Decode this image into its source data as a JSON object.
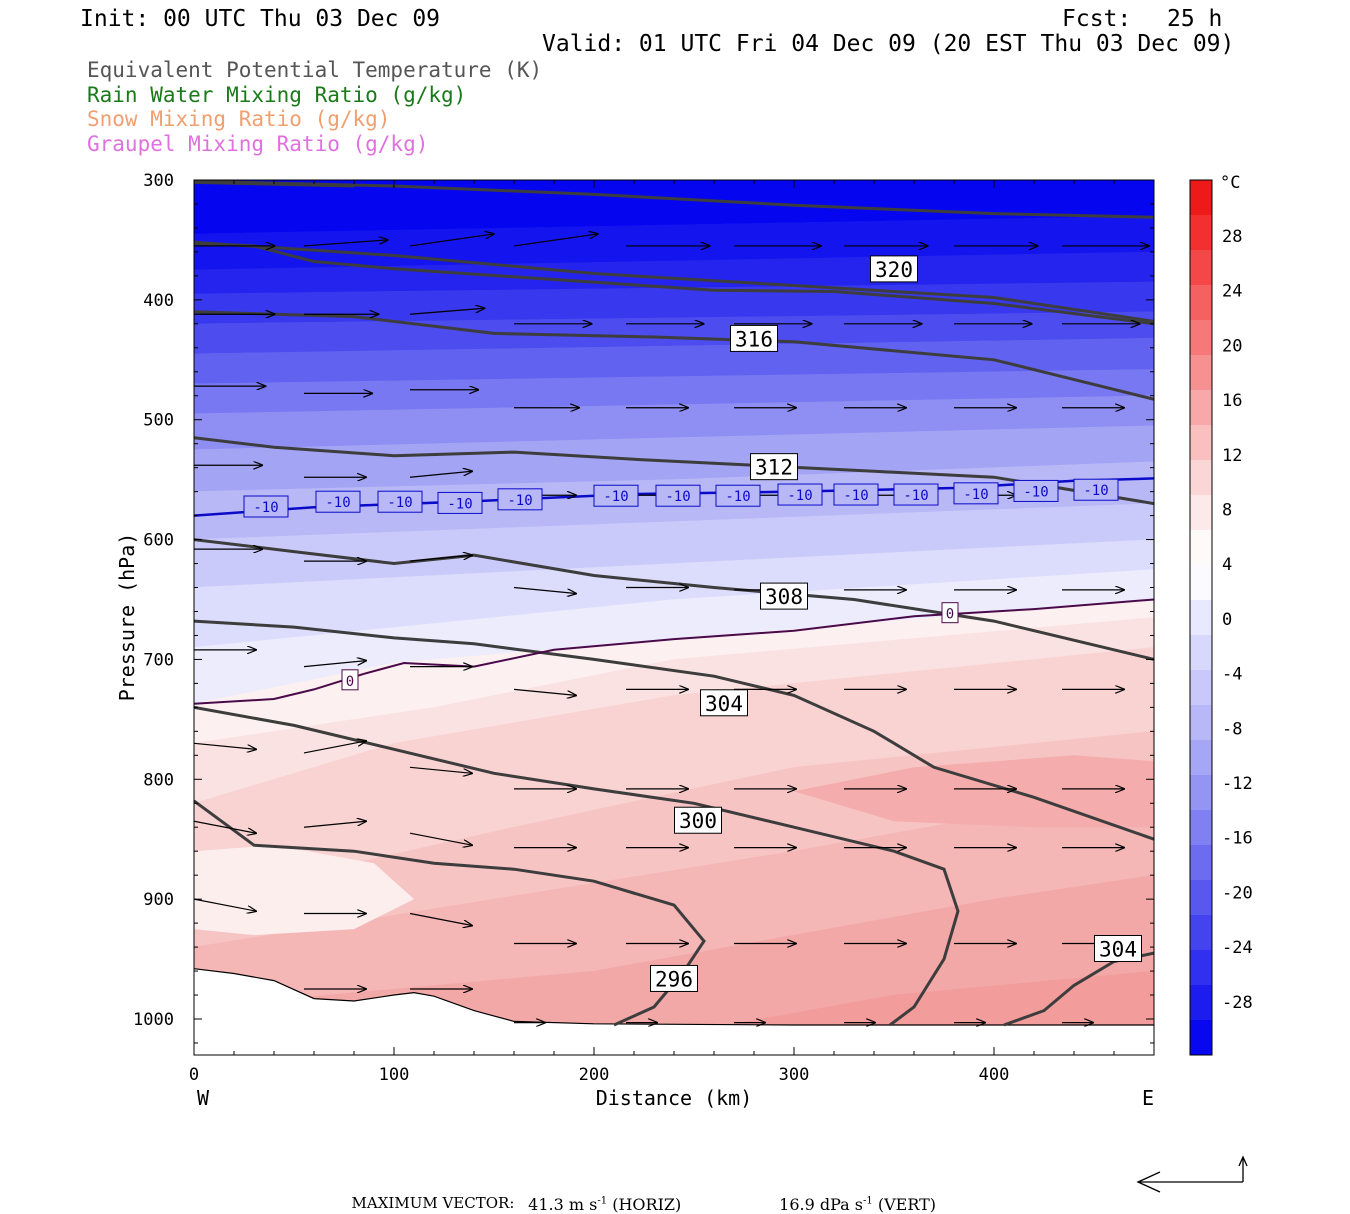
{
  "header": {
    "init": "Init: 00 UTC Thu 03 Dec 09",
    "fcst_label": "Fcst:",
    "fcst_value": "25 h",
    "valid": "Valid: 01 UTC Fri 04 Dec 09 (20 EST Thu 03 Dec 09)"
  },
  "legend": [
    {
      "text": "Equivalent Potential Temperature (K)",
      "color": "#555555"
    },
    {
      "text": "Rain Water Mixing Ratio (g/kg)",
      "color": "#1a7a1a"
    },
    {
      "text": "Snow Mixing Ratio (g/kg)",
      "color": "#f0a070"
    },
    {
      "text": "Graupel Mixing Ratio (g/kg)",
      "color": "#e070e0"
    }
  ],
  "footer": {
    "max_vector_label": "MAXIMUM VECTOR:",
    "horiz_value": "41.3 m s",
    "horiz_exp": "-1",
    "horiz_suffix": "(HORIZ)",
    "vert_value": "16.9 dPa s",
    "vert_exp": "-1",
    "vert_suffix": "(VERT)"
  },
  "chart_data": {
    "type": "heatmap",
    "description_fields": "cross-section of temperature (shaded, degC) with equivalent potential temperature contours (K), 0/-10 degC isotherms and wind vectors",
    "xlabel": "Distance (km)",
    "ylabel": "Pressure (hPa)",
    "xlim": [
      0,
      480
    ],
    "ylim": [
      1030,
      300
    ],
    "x_ticks": [
      0,
      100,
      200,
      300,
      400
    ],
    "y_ticks": [
      300,
      400,
      500,
      600,
      700,
      800,
      900,
      1000
    ],
    "x_end_labels": {
      "left": "W",
      "right": "E"
    },
    "colorbar": {
      "unit": "°C",
      "tick_labels": [
        "28",
        "24",
        "20",
        "16",
        "12",
        "8",
        "4",
        "0",
        "-4",
        "-8",
        "-12",
        "-16",
        "-20",
        "-24",
        "-28"
      ],
      "colors": [
        "#ee1a1a",
        "#f23030",
        "#f44848",
        "#f56060",
        "#f67878",
        "#f79090",
        "#f8a8a8",
        "#fac0c0",
        "#fbd6d6",
        "#fde9e9",
        "#fefafa",
        "#fafaff",
        "#e8e8ff",
        "#d8d8fc",
        "#c8c8fa",
        "#b8b8f8",
        "#a6a6f6",
        "#9494f4",
        "#8080f2",
        "#6c6cf0",
        "#5858ef",
        "#4444ee",
        "#3030ee",
        "#1c1cef",
        "#0808f0"
      ]
    },
    "theta_e_contours": [
      {
        "label": "320",
        "points": [
          [
            0,
            301
          ],
          [
            100,
            305
          ],
          [
            200,
            312
          ],
          [
            300,
            321
          ],
          [
            400,
            328
          ],
          [
            480,
            331
          ]
        ],
        "label_at": [
          350,
          375
        ]
      },
      {
        "label": "",
        "points": [
          [
            0,
            302
          ],
          [
            80,
            305
          ]
        ]
      },
      {
        "label": "",
        "points": [
          [
            0,
            352
          ],
          [
            100,
            363
          ],
          [
            200,
            378
          ],
          [
            300,
            388
          ],
          [
            400,
            398
          ],
          [
            480,
            418
          ]
        ]
      },
      {
        "label": "",
        "points": [
          [
            0,
            353
          ],
          [
            30,
            355
          ],
          [
            60,
            368
          ],
          [
            100,
            374
          ],
          [
            180,
            383
          ],
          [
            260,
            392
          ],
          [
            320,
            393
          ],
          [
            400,
            403
          ],
          [
            480,
            420
          ]
        ]
      },
      {
        "label": "316",
        "points": [
          [
            0,
            410
          ],
          [
            80,
            414
          ],
          [
            150,
            428
          ],
          [
            230,
            431
          ],
          [
            300,
            435
          ],
          [
            400,
            450
          ],
          [
            480,
            483
          ]
        ],
        "label_at": [
          280,
          433
        ]
      },
      {
        "label": "312",
        "points": [
          [
            0,
            515
          ],
          [
            40,
            523
          ],
          [
            100,
            530
          ],
          [
            160,
            527
          ],
          [
            220,
            533
          ],
          [
            280,
            538
          ],
          [
            340,
            543
          ],
          [
            400,
            548
          ],
          [
            480,
            570
          ]
        ],
        "label_at": [
          290,
          540
        ]
      },
      {
        "label": "308",
        "points": [
          [
            0,
            600
          ],
          [
            50,
            610
          ],
          [
            100,
            620
          ],
          [
            140,
            613
          ],
          [
            200,
            630
          ],
          [
            260,
            640
          ],
          [
            330,
            650
          ],
          [
            400,
            668
          ],
          [
            480,
            700
          ]
        ],
        "label_at": [
          295,
          648
        ]
      },
      {
        "label": "304",
        "points": [
          [
            0,
            668
          ],
          [
            50,
            673
          ],
          [
            100,
            682
          ],
          [
            140,
            687
          ],
          [
            200,
            700
          ],
          [
            260,
            714
          ],
          [
            300,
            730
          ],
          [
            340,
            760
          ],
          [
            370,
            790
          ],
          [
            420,
            815
          ],
          [
            480,
            850
          ]
        ],
        "label_at": [
          265,
          737
        ]
      },
      {
        "label": "300",
        "points": [
          [
            0,
            740
          ],
          [
            50,
            755
          ],
          [
            100,
            775
          ],
          [
            150,
            795
          ],
          [
            200,
            808
          ],
          [
            250,
            820
          ],
          [
            300,
            840
          ],
          [
            350,
            860
          ],
          [
            375,
            875
          ],
          [
            382,
            910
          ],
          [
            375,
            950
          ],
          [
            360,
            990
          ],
          [
            348,
            1005
          ]
        ],
        "label_at": [
          252,
          835
        ]
      },
      {
        "label": "296",
        "points": [
          [
            0,
            818
          ],
          [
            30,
            855
          ],
          [
            80,
            860
          ],
          [
            120,
            870
          ],
          [
            160,
            875
          ],
          [
            200,
            885
          ],
          [
            240,
            905
          ],
          [
            255,
            935
          ],
          [
            245,
            960
          ],
          [
            230,
            990
          ],
          [
            210,
            1005
          ]
        ],
        "label_at": [
          240,
          967
        ]
      },
      {
        "label": "304",
        "points": [
          [
            405,
            1005
          ],
          [
            425,
            993
          ],
          [
            440,
            972
          ],
          [
            460,
            952
          ],
          [
            480,
            945
          ]
        ],
        "label_at": [
          462,
          942
        ]
      }
    ],
    "isotherm_0": {
      "label": "0",
      "points": [
        [
          0,
          737
        ],
        [
          40,
          733
        ],
        [
          60,
          725
        ],
        [
          85,
          712
        ],
        [
          105,
          703
        ],
        [
          140,
          706
        ],
        [
          180,
          692
        ],
        [
          240,
          683
        ],
        [
          300,
          676
        ],
        [
          360,
          664
        ],
        [
          420,
          658
        ],
        [
          480,
          650
        ]
      ],
      "label_at": [
        [
          78,
          717
        ],
        [
          378,
          661
        ]
      ]
    },
    "isotherm_minus10": {
      "label": "-10",
      "points": [
        [
          0,
          580
        ],
        [
          60,
          573
        ],
        [
          140,
          568
        ],
        [
          220,
          562
        ],
        [
          300,
          560
        ],
        [
          380,
          557
        ],
        [
          440,
          551
        ],
        [
          480,
          549
        ]
      ],
      "label_at": [
        [
          36,
          572
        ],
        [
          72,
          568
        ],
        [
          103,
          568
        ],
        [
          133,
          569
        ],
        [
          163,
          566
        ],
        [
          211,
          563
        ],
        [
          242,
          563
        ],
        [
          272,
          563
        ],
        [
          303,
          562
        ],
        [
          331,
          562
        ],
        [
          361,
          562
        ],
        [
          391,
          561
        ],
        [
          421,
          559
        ],
        [
          451,
          558
        ]
      ]
    },
    "wind_vectors": [
      {
        "x": 0,
        "p": 355,
        "u": 26,
        "w": 0
      },
      {
        "x": 55,
        "p": 355,
        "u": 27,
        "w": 1
      },
      {
        "x": 108,
        "p": 355,
        "u": 27,
        "w": 2
      },
      {
        "x": 160,
        "p": 355,
        "u": 27,
        "w": 2
      },
      {
        "x": 216,
        "p": 355,
        "u": 27,
        "w": 0
      },
      {
        "x": 270,
        "p": 355,
        "u": 28,
        "w": 0
      },
      {
        "x": 325,
        "p": 355,
        "u": 27,
        "w": 0
      },
      {
        "x": 380,
        "p": 355,
        "u": 27,
        "w": 0
      },
      {
        "x": 434,
        "p": 355,
        "u": 28,
        "w": 0
      },
      {
        "x": 0,
        "p": 412,
        "u": 26,
        "w": 0
      },
      {
        "x": 55,
        "p": 412,
        "u": 24,
        "w": 0
      },
      {
        "x": 108,
        "p": 412,
        "u": 24,
        "w": 1
      },
      {
        "x": 160,
        "p": 420,
        "u": 25,
        "w": 0
      },
      {
        "x": 216,
        "p": 420,
        "u": 25,
        "w": 0
      },
      {
        "x": 270,
        "p": 420,
        "u": 25,
        "w": 0
      },
      {
        "x": 325,
        "p": 420,
        "u": 25,
        "w": 0
      },
      {
        "x": 380,
        "p": 420,
        "u": 25,
        "w": 0
      },
      {
        "x": 434,
        "p": 420,
        "u": 25,
        "w": 0
      },
      {
        "x": 0,
        "p": 472,
        "u": 23,
        "w": 0
      },
      {
        "x": 55,
        "p": 478,
        "u": 22,
        "w": 0
      },
      {
        "x": 108,
        "p": 475,
        "u": 22,
        "w": 0
      },
      {
        "x": 160,
        "p": 490,
        "u": 21,
        "w": 0
      },
      {
        "x": 216,
        "p": 490,
        "u": 20,
        "w": 0
      },
      {
        "x": 270,
        "p": 490,
        "u": 20,
        "w": 0
      },
      {
        "x": 325,
        "p": 490,
        "u": 20,
        "w": 0
      },
      {
        "x": 380,
        "p": 490,
        "u": 20,
        "w": 0
      },
      {
        "x": 434,
        "p": 490,
        "u": 20,
        "w": 0
      },
      {
        "x": 0,
        "p": 538,
        "u": 22,
        "w": 0
      },
      {
        "x": 55,
        "p": 548,
        "u": 20,
        "w": 0
      },
      {
        "x": 108,
        "p": 548,
        "u": 20,
        "w": 1
      },
      {
        "x": 160,
        "p": 563,
        "u": 20,
        "w": 0
      },
      {
        "x": 216,
        "p": 563,
        "u": 20,
        "w": 0
      },
      {
        "x": 270,
        "p": 563,
        "u": 20,
        "w": 0
      },
      {
        "x": 325,
        "p": 563,
        "u": 20,
        "w": 0
      },
      {
        "x": 380,
        "p": 563,
        "u": 20,
        "w": 0
      },
      {
        "x": 0,
        "p": 608,
        "u": 22,
        "w": 0
      },
      {
        "x": 55,
        "p": 618,
        "u": 20,
        "w": 0
      },
      {
        "x": 108,
        "p": 618,
        "u": 20,
        "w": 1
      },
      {
        "x": 160,
        "p": 640,
        "u": 20,
        "w": -1
      },
      {
        "x": 216,
        "p": 640,
        "u": 20,
        "w": 0
      },
      {
        "x": 270,
        "p": 642,
        "u": 20,
        "w": 0
      },
      {
        "x": 325,
        "p": 642,
        "u": 20,
        "w": 0
      },
      {
        "x": 380,
        "p": 642,
        "u": 20,
        "w": 0
      },
      {
        "x": 434,
        "p": 642,
        "u": 20,
        "w": 0
      },
      {
        "x": 0,
        "p": 692,
        "u": 20,
        "w": 0
      },
      {
        "x": 55,
        "p": 706,
        "u": 20,
        "w": 1
      },
      {
        "x": 108,
        "p": 706,
        "u": 20,
        "w": 0
      },
      {
        "x": 160,
        "p": 725,
        "u": 20,
        "w": -1
      },
      {
        "x": 216,
        "p": 725,
        "u": 20,
        "w": 0
      },
      {
        "x": 270,
        "p": 725,
        "u": 20,
        "w": 0
      },
      {
        "x": 325,
        "p": 725,
        "u": 20,
        "w": 0
      },
      {
        "x": 380,
        "p": 725,
        "u": 20,
        "w": 0
      },
      {
        "x": 434,
        "p": 725,
        "u": 20,
        "w": 0
      },
      {
        "x": 0,
        "p": 770,
        "u": 20,
        "w": -1
      },
      {
        "x": 55,
        "p": 778,
        "u": 20,
        "w": 2
      },
      {
        "x": 108,
        "p": 790,
        "u": 20,
        "w": -1
      },
      {
        "x": 160,
        "p": 808,
        "u": 20,
        "w": 0
      },
      {
        "x": 216,
        "p": 808,
        "u": 20,
        "w": 0
      },
      {
        "x": 270,
        "p": 808,
        "u": 20,
        "w": 0
      },
      {
        "x": 325,
        "p": 808,
        "u": 20,
        "w": 0
      },
      {
        "x": 380,
        "p": 808,
        "u": 20,
        "w": 0
      },
      {
        "x": 434,
        "p": 808,
        "u": 20,
        "w": 0
      },
      {
        "x": 0,
        "p": 835,
        "u": 20,
        "w": -2
      },
      {
        "x": 55,
        "p": 840,
        "u": 20,
        "w": 1
      },
      {
        "x": 108,
        "p": 845,
        "u": 20,
        "w": -2
      },
      {
        "x": 160,
        "p": 857,
        "u": 20,
        "w": 0
      },
      {
        "x": 216,
        "p": 857,
        "u": 20,
        "w": 0
      },
      {
        "x": 270,
        "p": 857,
        "u": 20,
        "w": 0
      },
      {
        "x": 325,
        "p": 857,
        "u": 20,
        "w": 0
      },
      {
        "x": 380,
        "p": 857,
        "u": 20,
        "w": 0
      },
      {
        "x": 434,
        "p": 857,
        "u": 20,
        "w": 0
      },
      {
        "x": 0,
        "p": 900,
        "u": 20,
        "w": -2
      },
      {
        "x": 55,
        "p": 912,
        "u": 20,
        "w": 0
      },
      {
        "x": 108,
        "p": 912,
        "u": 20,
        "w": -2
      },
      {
        "x": 160,
        "p": 937,
        "u": 20,
        "w": 0
      },
      {
        "x": 216,
        "p": 937,
        "u": 20,
        "w": 0
      },
      {
        "x": 270,
        "p": 937,
        "u": 20,
        "w": 0
      },
      {
        "x": 325,
        "p": 937,
        "u": 20,
        "w": 0
      },
      {
        "x": 380,
        "p": 937,
        "u": 20,
        "w": 0
      },
      {
        "x": 434,
        "p": 937,
        "u": 20,
        "w": 0
      },
      {
        "x": 55,
        "p": 975,
        "u": 20,
        "w": 0
      },
      {
        "x": 108,
        "p": 975,
        "u": 20,
        "w": 0
      },
      {
        "x": 160,
        "p": 1003,
        "u": 10,
        "w": 0
      },
      {
        "x": 216,
        "p": 1003,
        "u": 10,
        "w": 0
      },
      {
        "x": 270,
        "p": 1003,
        "u": 10,
        "w": 0
      },
      {
        "x": 325,
        "p": 1003,
        "u": 10,
        "w": 0
      },
      {
        "x": 380,
        "p": 1003,
        "u": 10,
        "w": 0
      },
      {
        "x": 434,
        "p": 1003,
        "u": 10,
        "w": 0
      }
    ],
    "ground_pressure": [
      [
        0,
        958
      ],
      [
        20,
        962
      ],
      [
        40,
        968
      ],
      [
        60,
        983
      ],
      [
        80,
        985
      ],
      [
        100,
        980
      ],
      [
        110,
        978
      ],
      [
        120,
        981
      ],
      [
        140,
        993
      ],
      [
        160,
        1002
      ],
      [
        200,
        1004
      ],
      [
        300,
        1005
      ],
      [
        400,
        1005
      ],
      [
        480,
        1005
      ]
    ]
  }
}
